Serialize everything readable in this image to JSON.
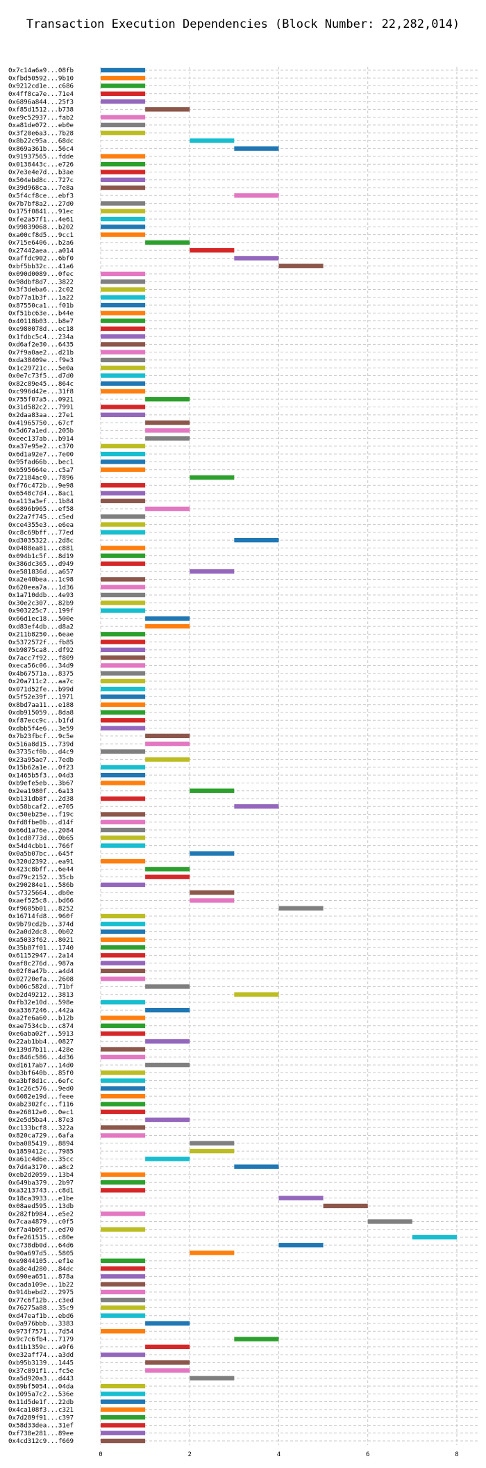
{
  "chart_data": {
    "type": "bar",
    "orientation": "horizontal-gantt",
    "title": "Transaction Execution Dependencies (Block Number: 22,282,014)",
    "xlabel": "",
    "ylabel": "",
    "xlim": [
      0,
      8.5
    ],
    "xticks": [
      0,
      2,
      4,
      6,
      8
    ],
    "grid": true,
    "palette": [
      "#1f77b4",
      "#ff7f0e",
      "#2ca02c",
      "#d62728",
      "#9467bd",
      "#8c564b",
      "#e377c2",
      "#7f7f7f",
      "#bcbd22",
      "#17becf"
    ],
    "transactions": [
      {
        "label": "0x7c14a6a9...08fb",
        "start": 0
      },
      {
        "label": "0xfbd50592...9b10",
        "start": 0
      },
      {
        "label": "0x9212cd1e...c686",
        "start": 0
      },
      {
        "label": "0x4ff8ca7e...71e4",
        "start": 0
      },
      {
        "label": "0x6896a844...25f3",
        "start": 0
      },
      {
        "label": "0xf85d1512...b738",
        "start": 1
      },
      {
        "label": "0xe9c52937...fab2",
        "start": 0
      },
      {
        "label": "0xa81de072...eb0e",
        "start": 0
      },
      {
        "label": "0x3f20e6a3...7b28",
        "start": 0
      },
      {
        "label": "0x8b22c95a...68dc",
        "start": 2
      },
      {
        "label": "0x869a361b...56c4",
        "start": 3
      },
      {
        "label": "0x91937565...fdde",
        "start": 0
      },
      {
        "label": "0x0138443c...e726",
        "start": 0
      },
      {
        "label": "0x7e3e4e7d...b3ae",
        "start": 0
      },
      {
        "label": "0x504ebd8c...727c",
        "start": 0
      },
      {
        "label": "0x39d968ca...7e8a",
        "start": 0
      },
      {
        "label": "0x5f4cf8ce...ebf3",
        "start": 3
      },
      {
        "label": "0x7b7bf8a2...27d0",
        "start": 0
      },
      {
        "label": "0x175f0841...91ec",
        "start": 0
      },
      {
        "label": "0xfe2a57f1...4e61",
        "start": 0
      },
      {
        "label": "0x99839068...b202",
        "start": 0
      },
      {
        "label": "0xa00cf8d5...9cc1",
        "start": 0
      },
      {
        "label": "0x715e6406...b2a6",
        "start": 1
      },
      {
        "label": "0x27442aea...a014",
        "start": 2
      },
      {
        "label": "0xaffdc902...6bf0",
        "start": 3
      },
      {
        "label": "0xbf5bb32c...41a6",
        "start": 4
      },
      {
        "label": "0x090d0089...0fec",
        "start": 0
      },
      {
        "label": "0x98dbf8d7...3822",
        "start": 0
      },
      {
        "label": "0x3f3deba6...2c02",
        "start": 0
      },
      {
        "label": "0xb77a1b3f...1a22",
        "start": 0
      },
      {
        "label": "0x87550ca1...f01b",
        "start": 0
      },
      {
        "label": "0xf51bc63e...b44e",
        "start": 0
      },
      {
        "label": "0x40118b03...b8e7",
        "start": 0
      },
      {
        "label": "0xe980078d...ec18",
        "start": 0
      },
      {
        "label": "0x1fdbc5c4...234a",
        "start": 0
      },
      {
        "label": "0xd6af2e30...6435",
        "start": 0
      },
      {
        "label": "0x7f9a0ae2...d21b",
        "start": 0
      },
      {
        "label": "0xda38409e...f9e3",
        "start": 0
      },
      {
        "label": "0x1c29721c...5e0a",
        "start": 0
      },
      {
        "label": "0x0e7c73f5...d7d0",
        "start": 0
      },
      {
        "label": "0x82c89e45...864c",
        "start": 0
      },
      {
        "label": "0xc996d42e...31f8",
        "start": 0
      },
      {
        "label": "0x755f07a5...0921",
        "start": 1
      },
      {
        "label": "0x31d582c2...7991",
        "start": 0
      },
      {
        "label": "0x2daa83aa...27e1",
        "start": 0
      },
      {
        "label": "0x41965750...67cf",
        "start": 1
      },
      {
        "label": "0x5d67a1ed...205b",
        "start": 1
      },
      {
        "label": "0xeec137ab...b914",
        "start": 1
      },
      {
        "label": "0xa37e95e2...c370",
        "start": 0
      },
      {
        "label": "0x6d1a92e7...7e00",
        "start": 0
      },
      {
        "label": "0x95fad66b...bec1",
        "start": 0
      },
      {
        "label": "0xb595664e...c5a7",
        "start": 0
      },
      {
        "label": "0x72184ac0...7896",
        "start": 2
      },
      {
        "label": "0xf76c472b...9e98",
        "start": 0
      },
      {
        "label": "0x6548c7d4...8ac1",
        "start": 0
      },
      {
        "label": "0xa113a3ef...1b84",
        "start": 0
      },
      {
        "label": "0x6896b965...ef58",
        "start": 1
      },
      {
        "label": "0x22a7f745...c5ed",
        "start": 0
      },
      {
        "label": "0xce4355e3...e6ea",
        "start": 0
      },
      {
        "label": "0xc8c69bff...77ed",
        "start": 0
      },
      {
        "label": "0xd3035322...2d8c",
        "start": 3
      },
      {
        "label": "0x0488ea81...c881",
        "start": 0
      },
      {
        "label": "0x094b1c5f...8d19",
        "start": 0
      },
      {
        "label": "0x386dc365...d949",
        "start": 0
      },
      {
        "label": "0xe581836d...a657",
        "start": 2
      },
      {
        "label": "0xa2e40bea...1c98",
        "start": 0
      },
      {
        "label": "0x620eea7a...1d36",
        "start": 0
      },
      {
        "label": "0x1a710ddb...4e93",
        "start": 0
      },
      {
        "label": "0x30e2c307...82b9",
        "start": 0
      },
      {
        "label": "0x903225c7...199f",
        "start": 0
      },
      {
        "label": "0x66d1ec18...500e",
        "start": 1
      },
      {
        "label": "0xd83ef4db...d8a2",
        "start": 1
      },
      {
        "label": "0x211b8250...6eae",
        "start": 0
      },
      {
        "label": "0x5372572f...fb85",
        "start": 0
      },
      {
        "label": "0xb9875ca8...df92",
        "start": 0
      },
      {
        "label": "0x7acc7f92...f809",
        "start": 0
      },
      {
        "label": "0xeca56c06...34d9",
        "start": 0
      },
      {
        "label": "0x4b67571a...8375",
        "start": 0
      },
      {
        "label": "0x20a711c2...aa7c",
        "start": 0
      },
      {
        "label": "0x071d52fe...b99d",
        "start": 0
      },
      {
        "label": "0x5f52e39f...1971",
        "start": 0
      },
      {
        "label": "0x8bd7aa11...e188",
        "start": 0
      },
      {
        "label": "0xdb915059...8da8",
        "start": 0
      },
      {
        "label": "0xf87ecc9c...b1fd",
        "start": 0
      },
      {
        "label": "0xdbb5f4e6...3e59",
        "start": 0
      },
      {
        "label": "0x7b23fbcf...9c5e",
        "start": 1
      },
      {
        "label": "0x516a8d15...739d",
        "start": 1
      },
      {
        "label": "0x3735cf0b...d4c9",
        "start": 0
      },
      {
        "label": "0x23a95ae7...7edb",
        "start": 1
      },
      {
        "label": "0x15b62a1e...0f23",
        "start": 0
      },
      {
        "label": "0x1465b5f3...04d3",
        "start": 0
      },
      {
        "label": "0xb9efe5eb...3b67",
        "start": 0
      },
      {
        "label": "0x2ea1980f...6a13",
        "start": 2
      },
      {
        "label": "0xb131db8f...2d38",
        "start": 0
      },
      {
        "label": "0xb58bcaf2...e705",
        "start": 3
      },
      {
        "label": "0xc50eb25e...f19c",
        "start": 0
      },
      {
        "label": "0xfd8fbe0b...d14f",
        "start": 0
      },
      {
        "label": "0x66d1a76e...2084",
        "start": 0
      },
      {
        "label": "0x1cd0773d...0b65",
        "start": 0
      },
      {
        "label": "0x54d4cbb1...766f",
        "start": 0
      },
      {
        "label": "0x0a5b07bc...645f",
        "start": 2
      },
      {
        "label": "0x320d2392...ea91",
        "start": 0
      },
      {
        "label": "0x423c8bff...6e44",
        "start": 1
      },
      {
        "label": "0xd79c2152...35cb",
        "start": 1
      },
      {
        "label": "0x290284e1...586b",
        "start": 0
      },
      {
        "label": "0x57325664...db0e",
        "start": 2
      },
      {
        "label": "0xaef525c8...bd66",
        "start": 2
      },
      {
        "label": "0xf9605b01...8252",
        "start": 4
      },
      {
        "label": "0x16714fd8...960f",
        "start": 0
      },
      {
        "label": "0x9b79cd2b...374d",
        "start": 0
      },
      {
        "label": "0x2a0d2dc8...0b02",
        "start": 0
      },
      {
        "label": "0xa5033f62...8021",
        "start": 0
      },
      {
        "label": "0x35b87f01...1740",
        "start": 0
      },
      {
        "label": "0x61152947...2a14",
        "start": 0
      },
      {
        "label": "0xaf8c276d...987a",
        "start": 0
      },
      {
        "label": "0x02f0a47b...a4d4",
        "start": 0
      },
      {
        "label": "0x02720efa...2608",
        "start": 0
      },
      {
        "label": "0xb06c582d...71bf",
        "start": 1
      },
      {
        "label": "0xb2d49212...3813",
        "start": 3
      },
      {
        "label": "0xfb32e10d...598e",
        "start": 0
      },
      {
        "label": "0xa3367246...442a",
        "start": 1
      },
      {
        "label": "0xa2fe6a60...b12b",
        "start": 0
      },
      {
        "label": "0xae7534cb...c874",
        "start": 0
      },
      {
        "label": "0xe6aba02f...5913",
        "start": 0
      },
      {
        "label": "0x22ab1bb4...0827",
        "start": 1
      },
      {
        "label": "0x139d7b11...428e",
        "start": 0
      },
      {
        "label": "0xc846c586...4d36",
        "start": 0
      },
      {
        "label": "0xd1617ab7...14d0",
        "start": 1
      },
      {
        "label": "0xb3bf640b...85f0",
        "start": 0
      },
      {
        "label": "0xa3bf8d1c...6efc",
        "start": 0
      },
      {
        "label": "0x1c26c576...9ed0",
        "start": 0
      },
      {
        "label": "0x6082e19d...feee",
        "start": 0
      },
      {
        "label": "0xab2302fc...f116",
        "start": 0
      },
      {
        "label": "0xe26812e0...0ec1",
        "start": 0
      },
      {
        "label": "0x2e5d5ba4...87e3",
        "start": 1
      },
      {
        "label": "0xc133bcf8...322a",
        "start": 0
      },
      {
        "label": "0x820ca729...6afa",
        "start": 0
      },
      {
        "label": "0xba085419...8894",
        "start": 2
      },
      {
        "label": "0x1859412c...7985",
        "start": 2
      },
      {
        "label": "0xa61c4d6e...35cc",
        "start": 1
      },
      {
        "label": "0x7d4a3170...a8c2",
        "start": 3
      },
      {
        "label": "0xeb2d2059...13b4",
        "start": 0
      },
      {
        "label": "0x649ba379...2b97",
        "start": 0
      },
      {
        "label": "0xa3213743...c8d1",
        "start": 0
      },
      {
        "label": "0x18ca3933...e1be",
        "start": 4
      },
      {
        "label": "0x08aed595...13db",
        "start": 5
      },
      {
        "label": "0x282fb984...e5e2",
        "start": 0
      },
      {
        "label": "0x7caa4879...c0f5",
        "start": 6
      },
      {
        "label": "0xf7a4b05f...ed70",
        "start": 0
      },
      {
        "label": "0xfe261515...c80e",
        "start": 7
      },
      {
        "label": "0xc738db0d...64d6",
        "start": 4
      },
      {
        "label": "0x90a697d5...5805",
        "start": 2
      },
      {
        "label": "0xe9844105...ef1e",
        "start": 0
      },
      {
        "label": "0xa8c4d280...84dc",
        "start": 0
      },
      {
        "label": "0x690ea651...878a",
        "start": 0
      },
      {
        "label": "0xcada109e...1b22",
        "start": 0
      },
      {
        "label": "0x914bebd2...2975",
        "start": 0
      },
      {
        "label": "0x77c6f12b...c3ed",
        "start": 0
      },
      {
        "label": "0x76275a88...35c9",
        "start": 0
      },
      {
        "label": "0xd47eaf1b...ebd6",
        "start": 0
      },
      {
        "label": "0x0a976bbb...3383",
        "start": 1
      },
      {
        "label": "0x973f7571...7d54",
        "start": 0
      },
      {
        "label": "0x9c7c6fb4...7179",
        "start": 3
      },
      {
        "label": "0x41b1359c...a9f6",
        "start": 1
      },
      {
        "label": "0xe32aff74...a3dd",
        "start": 0
      },
      {
        "label": "0xb95b3139...1445",
        "start": 1
      },
      {
        "label": "0x37c891f1...fc5e",
        "start": 1
      },
      {
        "label": "0xa5d920a3...d443",
        "start": 2
      },
      {
        "label": "0x89bf5054...04da",
        "start": 0
      },
      {
        "label": "0x1095a7c2...536e",
        "start": 0
      },
      {
        "label": "0x11d5de1f...22db",
        "start": 0
      },
      {
        "label": "0x4ca108f3...c321",
        "start": 0
      },
      {
        "label": "0x7d289f91...c397",
        "start": 0
      },
      {
        "label": "0x58d33dea...31ef",
        "start": 0
      },
      {
        "label": "0xf738e281...89ee",
        "start": 0
      },
      {
        "label": "0x4cd312c9...f669",
        "start": 0
      }
    ]
  }
}
